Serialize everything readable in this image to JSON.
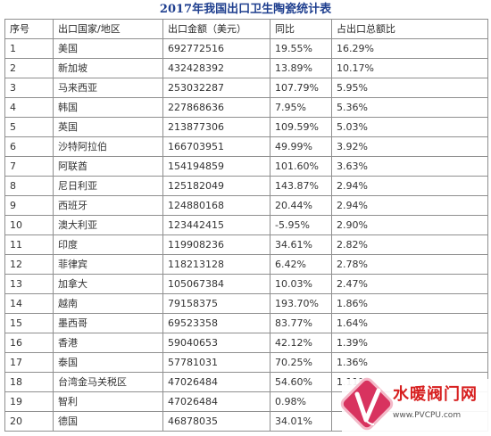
{
  "title": "2017年我国出口卫生陶瓷统计表",
  "columns": [
    "序号",
    "出口国家/地区",
    "出口金额（美元）",
    "同比",
    "占出口总额比"
  ],
  "rows": [
    {
      "idx": "1",
      "country": "美国",
      "amount": "692772516",
      "yoy": "19.55%",
      "share": "16.29%"
    },
    {
      "idx": "2",
      "country": "新加坡",
      "amount": "432428392",
      "yoy": "13.89%",
      "share": "10.17%"
    },
    {
      "idx": "3",
      "country": "马来西亚",
      "amount": "253032287",
      "yoy": "107.79%",
      "share": "5.95%"
    },
    {
      "idx": "4",
      "country": "韩国",
      "amount": "227868636",
      "yoy": "7.95%",
      "share": "5.36%"
    },
    {
      "idx": "5",
      "country": "英国",
      "amount": "213877306",
      "yoy": "109.59%",
      "share": "5.03%"
    },
    {
      "idx": "6",
      "country": "沙特阿拉伯",
      "amount": "166703951",
      "yoy": "49.99%",
      "share": "3.92%"
    },
    {
      "idx": "7",
      "country": "阿联酋",
      "amount": "154194859",
      "yoy": "101.60%",
      "share": "3.63%"
    },
    {
      "idx": "8",
      "country": "尼日利亚",
      "amount": "125182049",
      "yoy": "143.87%",
      "share": "2.94%"
    },
    {
      "idx": "9",
      "country": "西班牙",
      "amount": "124880168",
      "yoy": "20.44%",
      "share": "2.94%"
    },
    {
      "idx": "10",
      "country": "澳大利亚",
      "amount": "123442415",
      "yoy": "-5.95%",
      "share": "2.90%"
    },
    {
      "idx": "11",
      "country": "印度",
      "amount": "119908236",
      "yoy": "34.61%",
      "share": "2.82%"
    },
    {
      "idx": "12",
      "country": "菲律宾",
      "amount": "118213128",
      "yoy": "6.42%",
      "share": "2.78%"
    },
    {
      "idx": "13",
      "country": "加拿大",
      "amount": "105067384",
      "yoy": "10.03%",
      "share": "2.47%"
    },
    {
      "idx": "14",
      "country": "越南",
      "amount": "79158375",
      "yoy": "193.70%",
      "share": "1.86%"
    },
    {
      "idx": "15",
      "country": "墨西哥",
      "amount": "69523358",
      "yoy": "83.77%",
      "share": "1.64%"
    },
    {
      "idx": "16",
      "country": "香港",
      "amount": "59040653",
      "yoy": "42.12%",
      "share": "1.39%"
    },
    {
      "idx": "17",
      "country": "泰国",
      "amount": "57781031",
      "yoy": "70.25%",
      "share": "1.36%"
    },
    {
      "idx": "18",
      "country": "台湾金马关税区",
      "amount": "47026484",
      "yoy": "54.60%",
      "share": "1.11%"
    },
    {
      "idx": "19",
      "country": "智利",
      "amount": "47026484",
      "yoy": "0.98%",
      "share": ""
    },
    {
      "idx": "20",
      "country": "德国",
      "amount": "46878035",
      "yoy": "34.01%",
      "share": ""
    }
  ],
  "watermark": {
    "name": "水暖阀门网",
    "url": "www.PVCPU.com",
    "badge_color": "#d8335f",
    "text_color": "#d71f1f"
  },
  "colors": {
    "title": "#1f3f8f",
    "border": "#8f8f8f",
    "text": "#333333"
  }
}
